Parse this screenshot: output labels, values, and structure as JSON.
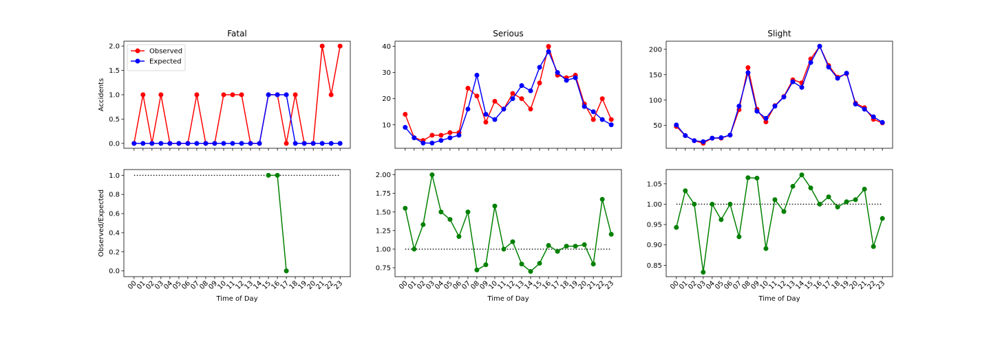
{
  "chart_data": [
    {
      "type": "line",
      "title": "Fatal",
      "xlabel": "",
      "ylabel": "Accidents",
      "categories": [
        "00",
        "01",
        "02",
        "03",
        "04",
        "05",
        "06",
        "07",
        "08",
        "09",
        "10",
        "11",
        "12",
        "13",
        "14",
        "15",
        "16",
        "17",
        "18",
        "19",
        "20",
        "21",
        "22",
        "23"
      ],
      "ylim": [
        -0.1,
        2.1
      ],
      "yticks": [
        "0.0",
        "0.5",
        "1.0",
        "1.5",
        "2.0"
      ],
      "legend": "upper-left",
      "series": [
        {
          "name": "Observed",
          "color": "#ff0000",
          "values": [
            0,
            1,
            0,
            1,
            0,
            0,
            0,
            1,
            0,
            0,
            1,
            1,
            1,
            0,
            0,
            1,
            1,
            0,
            1,
            0,
            0,
            2,
            1,
            2
          ]
        },
        {
          "name": "Expected",
          "color": "#0000ff",
          "values": [
            0,
            0,
            0,
            0,
            0,
            0,
            0,
            0,
            0,
            0,
            0,
            0,
            0,
            0,
            0,
            1,
            1,
            1,
            0,
            0,
            0,
            0,
            0,
            0
          ]
        }
      ]
    },
    {
      "type": "line",
      "title": "Serious",
      "xlabel": "",
      "ylabel": "",
      "categories": [
        "00",
        "01",
        "02",
        "03",
        "04",
        "05",
        "06",
        "07",
        "08",
        "09",
        "10",
        "11",
        "12",
        "13",
        "14",
        "15",
        "16",
        "17",
        "18",
        "19",
        "20",
        "21",
        "22",
        "23"
      ],
      "ylim": [
        1,
        42
      ],
      "yticks": [
        "10",
        "20",
        "30",
        "40"
      ],
      "series": [
        {
          "name": "Observed",
          "color": "#ff0000",
          "values": [
            14,
            5,
            4,
            6,
            6,
            7,
            7,
            24,
            21,
            11,
            19,
            16,
            22,
            20,
            16,
            26,
            40,
            29,
            28,
            29,
            18,
            12,
            20,
            12
          ]
        },
        {
          "name": "Expected",
          "color": "#0000ff",
          "values": [
            9,
            5,
            3,
            3,
            4,
            5,
            6,
            16,
            29,
            14,
            12,
            16,
            20,
            25,
            23,
            32,
            38,
            30,
            27,
            28,
            17,
            15,
            12,
            10
          ]
        }
      ]
    },
    {
      "type": "line",
      "title": "Slight",
      "xlabel": "",
      "ylabel": "",
      "categories": [
        "00",
        "01",
        "02",
        "03",
        "04",
        "05",
        "06",
        "07",
        "08",
        "09",
        "10",
        "11",
        "12",
        "13",
        "14",
        "15",
        "16",
        "17",
        "18",
        "19",
        "20",
        "21",
        "22",
        "23"
      ],
      "ylim": [
        5,
        216
      ],
      "yticks": [
        "50",
        "100",
        "150",
        "200"
      ],
      "series": [
        {
          "name": "Observed",
          "color": "#ff0000",
          "values": [
            48,
            30,
            20,
            15,
            25,
            25,
            31,
            81,
            164,
            82,
            57,
            89,
            107,
            140,
            134,
            181,
            206,
            168,
            145,
            152,
            94,
            85,
            62,
            55
          ]
        },
        {
          "name": "Expected",
          "color": "#0000ff",
          "values": [
            51,
            30,
            20,
            18,
            25,
            26,
            31,
            88,
            154,
            78,
            64,
            88,
            106,
            136,
            125,
            174,
            206,
            165,
            143,
            153,
            92,
            82,
            67,
            56
          ]
        }
      ]
    },
    {
      "type": "line",
      "title": "",
      "xlabel": "Time of Day",
      "ylabel": "Observed/Expected",
      "categories": [
        "00",
        "01",
        "02",
        "03",
        "04",
        "05",
        "06",
        "07",
        "08",
        "09",
        "10",
        "11",
        "12",
        "13",
        "14",
        "15",
        "16",
        "17",
        "18",
        "19",
        "20",
        "21",
        "22",
        "23"
      ],
      "ylim": [
        -0.06,
        1.06
      ],
      "yticks": [
        "0.0",
        "0.2",
        "0.4",
        "0.6",
        "0.8",
        "1.0"
      ],
      "reference_line": 1.0,
      "series": [
        {
          "name": "",
          "color": "#008000",
          "values": [
            null,
            null,
            null,
            null,
            null,
            null,
            null,
            null,
            null,
            null,
            null,
            null,
            null,
            null,
            null,
            1.0,
            1.0,
            0.0,
            null,
            null,
            null,
            null,
            null,
            null
          ]
        }
      ]
    },
    {
      "type": "line",
      "title": "",
      "xlabel": "Time of Day",
      "ylabel": "",
      "categories": [
        "00",
        "01",
        "02",
        "03",
        "04",
        "05",
        "06",
        "07",
        "08",
        "09",
        "10",
        "11",
        "12",
        "13",
        "14",
        "15",
        "16",
        "17",
        "18",
        "19",
        "20",
        "21",
        "22",
        "23"
      ],
      "ylim": [
        0.63,
        2.07
      ],
      "yticks": [
        "0.75",
        "1.00",
        "1.25",
        "1.50",
        "1.75",
        "2.00"
      ],
      "reference_line": 1.0,
      "series": [
        {
          "name": "",
          "color": "#008000",
          "values": [
            1.55,
            1.0,
            1.33,
            2.0,
            1.5,
            1.4,
            1.17,
            1.5,
            0.72,
            0.79,
            1.58,
            1.0,
            1.1,
            0.8,
            0.7,
            0.81,
            1.05,
            0.97,
            1.04,
            1.04,
            1.06,
            0.8,
            1.67,
            1.2
          ]
        }
      ]
    },
    {
      "type": "line",
      "title": "",
      "xlabel": "Time of Day",
      "ylabel": "",
      "categories": [
        "00",
        "01",
        "02",
        "03",
        "04",
        "05",
        "06",
        "07",
        "08",
        "09",
        "10",
        "11",
        "12",
        "13",
        "14",
        "15",
        "16",
        "17",
        "18",
        "19",
        "20",
        "21",
        "22",
        "23"
      ],
      "ylim": [
        0.822,
        1.085
      ],
      "yticks": [
        "0.85",
        "0.90",
        "0.95",
        "1.00",
        "1.05"
      ],
      "reference_line": 1.0,
      "series": [
        {
          "name": "",
          "color": "#008000",
          "values": [
            0.943,
            1.033,
            1.0,
            0.833,
            1.0,
            0.962,
            1.0,
            0.92,
            1.065,
            1.064,
            0.891,
            1.011,
            0.982,
            1.044,
            1.072,
            1.04,
            1.0,
            1.018,
            0.993,
            1.006,
            1.011,
            1.037,
            0.896,
            0.965
          ]
        }
      ]
    }
  ]
}
